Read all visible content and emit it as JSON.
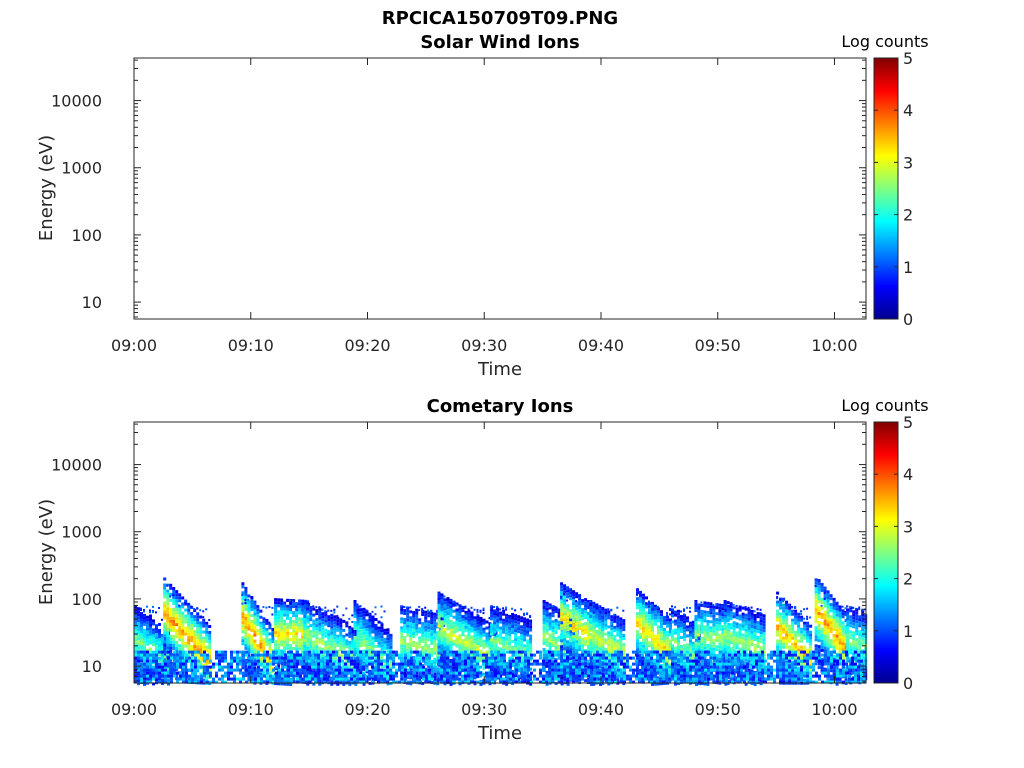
{
  "figure": {
    "title": "RPCICA150709T09.PNG"
  },
  "colors": {
    "axis": "#262626",
    "jet": [
      "#00008f",
      "#0000ff",
      "#00ffff",
      "#ffff00",
      "#ff0000",
      "#800000"
    ]
  },
  "chart_data": [
    {
      "type": "heatmap",
      "title": "Solar Wind Ions",
      "xlabel": "Time",
      "ylabel": "Energy (eV)",
      "x_ticks": [
        "09:00",
        "09:10",
        "09:20",
        "09:30",
        "09:40",
        "09:50",
        "10:00"
      ],
      "x_tick_minutes": [
        0,
        10,
        20,
        30,
        40,
        50,
        60
      ],
      "xlim_minutes": [
        0,
        62.7
      ],
      "y_scale": "log",
      "y_ticks": [
        "10",
        "100",
        "1000",
        "10000"
      ],
      "y_tick_values": [
        10,
        100,
        1000,
        10000
      ],
      "ylim": [
        5.6,
        43000
      ],
      "colorbar": {
        "label": "Log counts",
        "ticks": [
          "0",
          "1",
          "2",
          "3",
          "4",
          "5"
        ],
        "range": [
          0,
          5
        ],
        "colormap": "jet"
      },
      "blobs": []
    },
    {
      "type": "heatmap",
      "title": "Cometary Ions",
      "xlabel": "Time",
      "ylabel": "Energy (eV)",
      "x_ticks": [
        "09:00",
        "09:10",
        "09:20",
        "09:30",
        "09:40",
        "09:50",
        "10:00"
      ],
      "x_tick_minutes": [
        0,
        10,
        20,
        30,
        40,
        50,
        60
      ],
      "xlim_minutes": [
        0,
        62.7
      ],
      "y_scale": "log",
      "y_ticks": [
        "10",
        "100",
        "1000",
        "10000"
      ],
      "y_tick_values": [
        10,
        100,
        1000,
        10000
      ],
      "ylim": [
        5.6,
        43000
      ],
      "colorbar": {
        "label": "Log counts",
        "ticks": [
          "0",
          "1",
          "2",
          "3",
          "4",
          "5"
        ],
        "range": [
          0,
          5
        ],
        "colormap": "jet"
      },
      "blobs": [
        {
          "t": [
            0.0,
            3.0
          ],
          "e0": 25,
          "e1": 12,
          "peak": 2.8
        },
        {
          "t": [
            2.5,
            6.5
          ],
          "e0": 65,
          "e1": 12,
          "peak": 4.0
        },
        {
          "t": [
            9.2,
            12.0
          ],
          "e0": 55,
          "e1": 10,
          "peak": 4.0
        },
        {
          "t": [
            12.0,
            15.0
          ],
          "e0": 32,
          "e1": 30,
          "peak": 3.6
        },
        {
          "t": [
            14.5,
            19.0
          ],
          "e0": 30,
          "e1": 12,
          "peak": 3.0
        },
        {
          "t": [
            18.8,
            22.0
          ],
          "e0": 30,
          "e1": 10,
          "peak": 2.8
        },
        {
          "t": [
            22.8,
            26.5
          ],
          "e0": 25,
          "e1": 18,
          "peak": 3.0
        },
        {
          "t": [
            26.0,
            31.0
          ],
          "e0": 40,
          "e1": 12,
          "peak": 3.2
        },
        {
          "t": [
            30.5,
            34.0
          ],
          "e0": 25,
          "e1": 15,
          "peak": 2.8
        },
        {
          "t": [
            35.0,
            38.0
          ],
          "e0": 30,
          "e1": 15,
          "peak": 3.0
        },
        {
          "t": [
            36.5,
            40.0
          ],
          "e0": 55,
          "e1": 22,
          "peak": 3.6
        },
        {
          "t": [
            39.0,
            42.0
          ],
          "e0": 30,
          "e1": 15,
          "peak": 3.2
        },
        {
          "t": [
            43.0,
            46.0
          ],
          "e0": 45,
          "e1": 15,
          "peak": 3.6
        },
        {
          "t": [
            46.0,
            48.5
          ],
          "e0": 25,
          "e1": 12,
          "peak": 2.8
        },
        {
          "t": [
            48.0,
            51.0
          ],
          "e0": 30,
          "e1": 25,
          "peak": 3.0
        },
        {
          "t": [
            50.5,
            54.0
          ],
          "e0": 30,
          "e1": 18,
          "peak": 3.0
        },
        {
          "t": [
            55.0,
            58.0
          ],
          "e0": 40,
          "e1": 12,
          "peak": 3.8
        },
        {
          "t": [
            58.3,
            61.0
          ],
          "e0": 70,
          "e1": 18,
          "peak": 4.0
        },
        {
          "t": [
            61.0,
            62.7
          ],
          "e0": 25,
          "e1": 20,
          "peak": 2.8
        }
      ]
    }
  ]
}
